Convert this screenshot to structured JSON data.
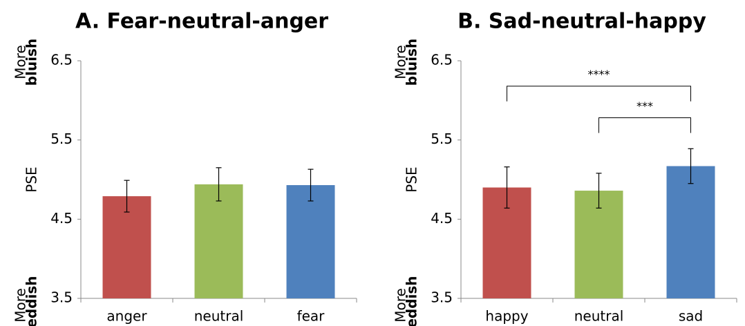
{
  "chart_data": [
    {
      "type": "bar",
      "title": "A. Fear-neutral-anger",
      "ylabel": "PSE",
      "top_label": {
        "line1": "More",
        "line2": "bluish"
      },
      "bottom_label": {
        "line1": "More",
        "line2": "reddish"
      },
      "categories": [
        "anger",
        "neutral",
        "fear"
      ],
      "values": [
        4.79,
        4.94,
        4.93
      ],
      "errors": [
        0.2,
        0.21,
        0.2
      ],
      "colors": [
        "#c0504d",
        "#9bbb59",
        "#4f81bd"
      ],
      "ylim": [
        3.5,
        6.5
      ],
      "yticks": [
        3.5,
        4.5,
        5.5,
        6.5
      ],
      "grid": false
    },
    {
      "type": "bar",
      "title": "B. Sad-neutral-happy",
      "ylabel": "PSE",
      "top_label": {
        "line1": "More",
        "line2": "bluish"
      },
      "bottom_label": {
        "line1": "More",
        "line2": "reddish"
      },
      "categories": [
        "happy",
        "neutral",
        "sad"
      ],
      "values": [
        4.9,
        4.86,
        5.17
      ],
      "errors": [
        0.26,
        0.22,
        0.22
      ],
      "colors": [
        "#c0504d",
        "#9bbb59",
        "#4f81bd"
      ],
      "ylim": [
        3.5,
        6.5
      ],
      "yticks": [
        3.5,
        4.5,
        5.5,
        6.5
      ],
      "grid": false,
      "brackets": [
        {
          "from": 0,
          "to": 2,
          "y": 6.18,
          "label": "****"
        },
        {
          "from": 1,
          "to": 2,
          "y": 5.78,
          "label": "***"
        }
      ]
    }
  ]
}
